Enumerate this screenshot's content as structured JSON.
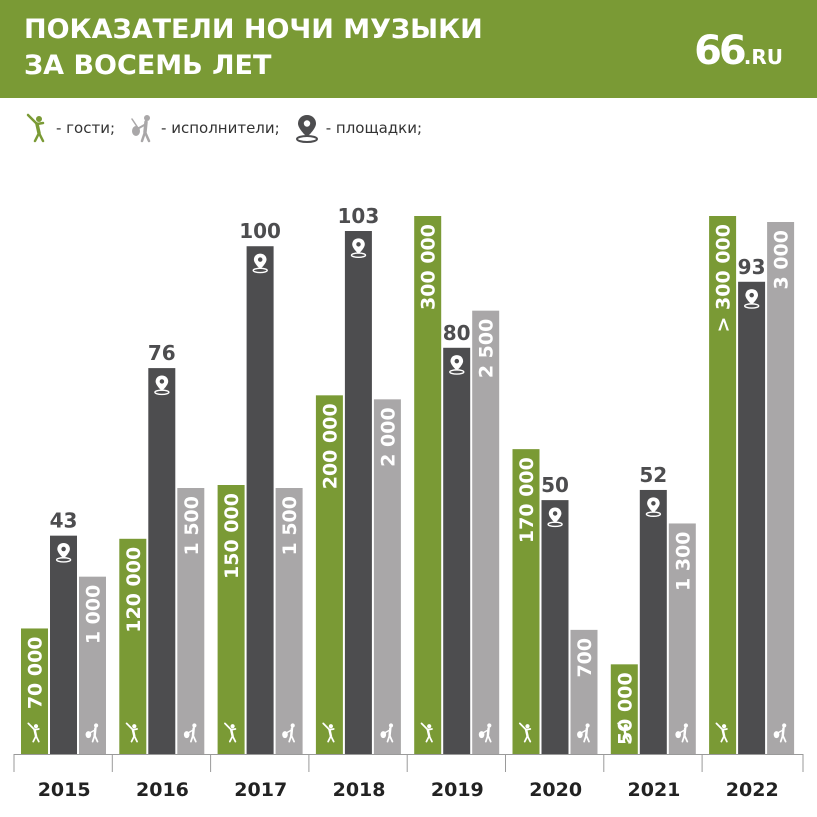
{
  "header": {
    "title_line1": "ПОКАЗАТЕЛИ НОЧИ МУЗЫКИ",
    "title_line2": "ЗА ВОСЕМЬ ЛЕТ",
    "logo_main": "66",
    "logo_suffix": ".RU"
  },
  "legend": {
    "guests": "- гости;",
    "performers": "- исполнители;",
    "venues": "- площадки;"
  },
  "colors": {
    "header": "#7a9a35",
    "guests": "#7a9a35",
    "venues": "#4d4d4f",
    "performers": "#a9a7a8"
  },
  "icons": {
    "guests": "dancing-person-icon",
    "performers": "musician-icon",
    "venues": "location-pin-icon"
  },
  "chart_data": {
    "type": "bar",
    "categories": [
      "2015",
      "2016",
      "2017",
      "2018",
      "2019",
      "2020",
      "2021",
      "2022"
    ],
    "series": [
      {
        "name": "гости",
        "values": [
          70000,
          120000,
          150000,
          200000,
          300000,
          170000,
          50000,
          300000
        ],
        "labels": [
          "70 000",
          "120 000",
          "150 000",
          "200 000",
          "300 000",
          "170 000",
          "50 000",
          "> 300 000"
        ]
      },
      {
        "name": "площадки",
        "values": [
          43,
          76,
          100,
          103,
          80,
          50,
          52,
          93
        ],
        "labels": [
          "43",
          "76",
          "100",
          "103",
          "80",
          "50",
          "52",
          "93"
        ]
      },
      {
        "name": "исполнители",
        "values": [
          1000,
          1500,
          1500,
          2000,
          2500,
          700,
          1300,
          3000
        ],
        "labels": [
          "1 000",
          "1 500",
          "1 500",
          "2 000",
          "2 500",
          "700",
          "1 300",
          "3 000"
        ]
      }
    ]
  }
}
